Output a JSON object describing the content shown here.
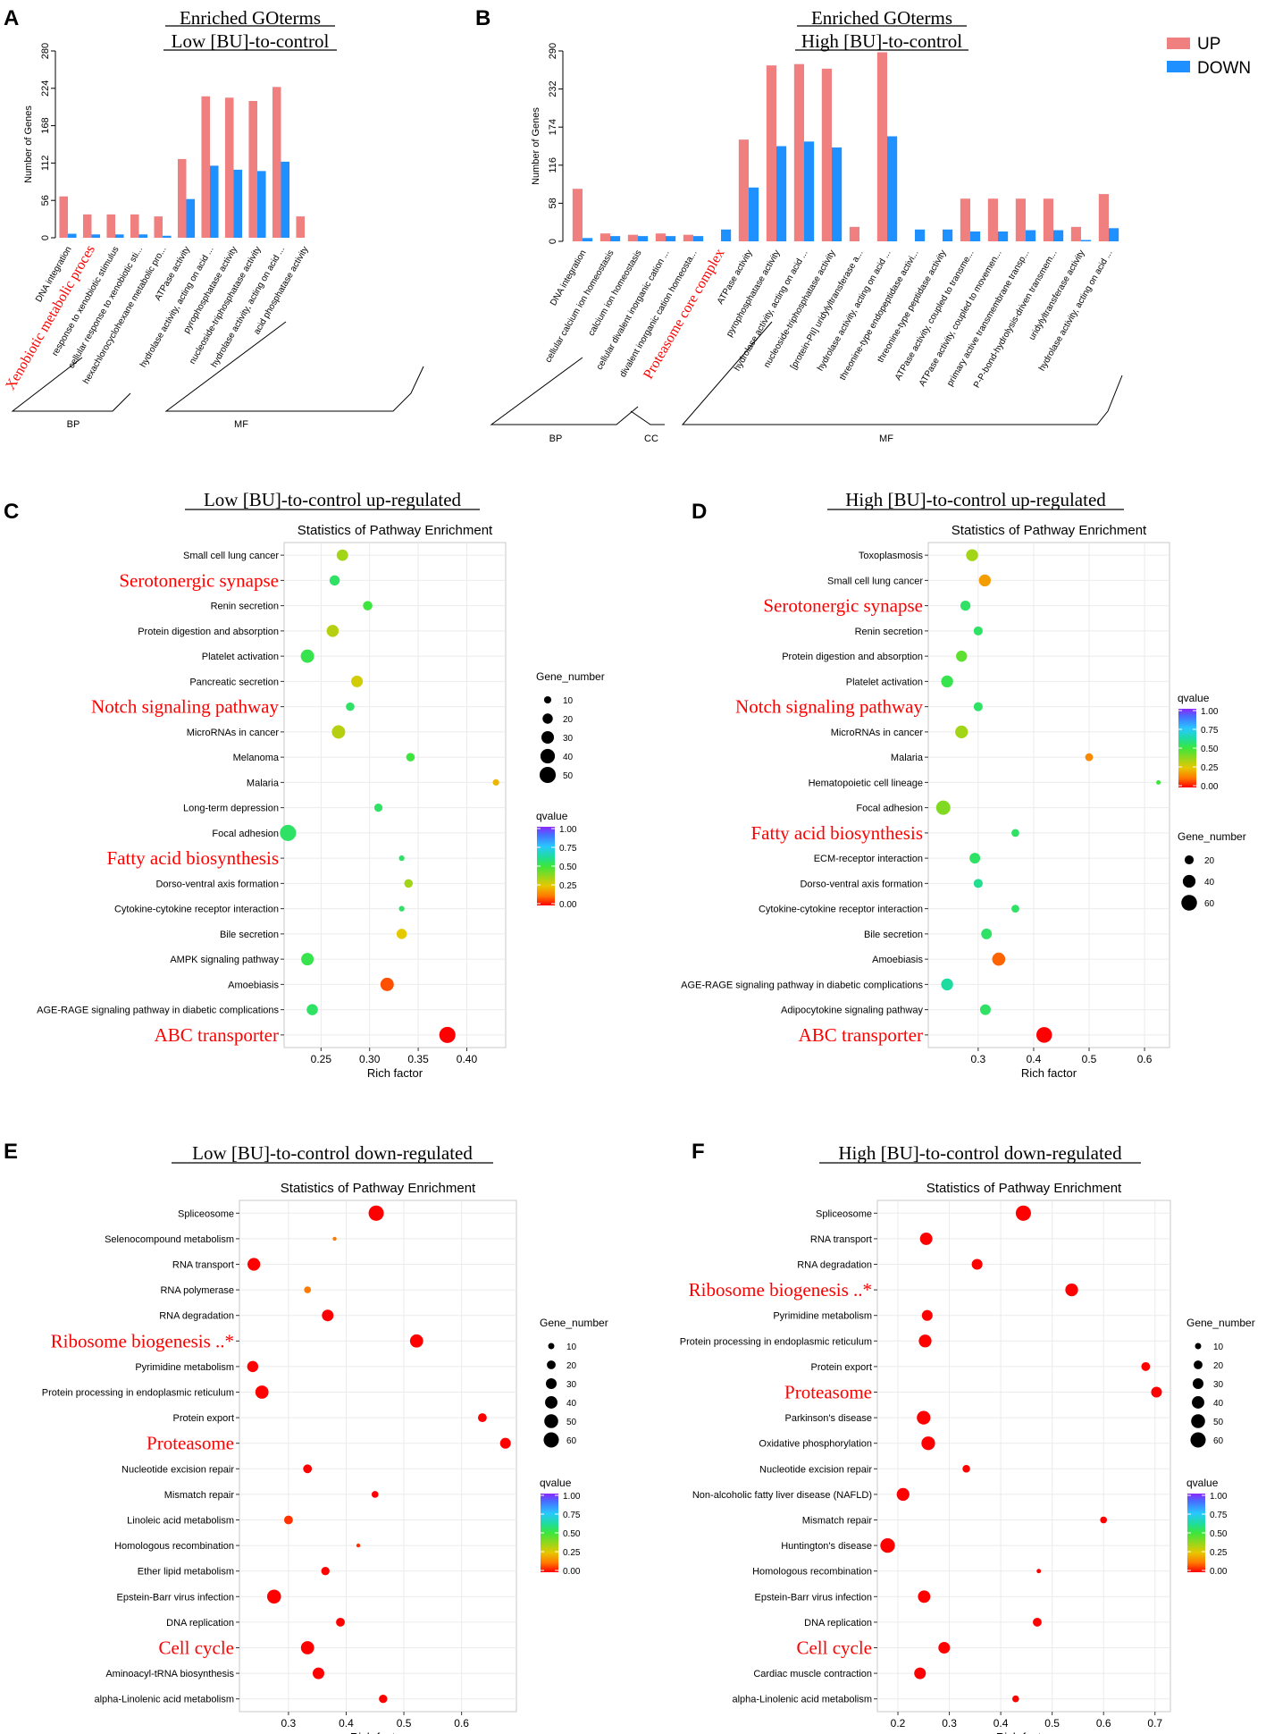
{
  "colors": {
    "up": "#F08080",
    "down": "#1E90FF",
    "highlight": "#FF0000",
    "grid": "#EBEBEB",
    "frame": "#C8C8C8"
  },
  "legend": {
    "up": "UP",
    "down": "DOWN"
  },
  "chart_data": [
    {
      "id": "A",
      "panel_letter": "A",
      "type": "bar",
      "title_line1": "Enriched GOterms",
      "title_line2": "Low [BU]-to-control",
      "ylabel": "Number of Genes",
      "ylim": [
        0,
        280
      ],
      "yticks": [
        0,
        56,
        112,
        168,
        224,
        280
      ],
      "categories": [
        "DNA integration",
        "Xenobiotic metabolic proces",
        "response to xenobiotic stimulus",
        "cellular response to xenobiotic sti...",
        "hexachlorocyclohexane metabolic pro...",
        "ATPase activity",
        "hydrolase activity, acting on acid ...",
        "pyrophosphatase activity",
        "nucleoside-triphosphatase activity",
        "hydrolase activity, acting on acid ...",
        "acid phosphatase activity"
      ],
      "highlight": [
        1
      ],
      "series": [
        {
          "name": "UP",
          "values": [
            62,
            35,
            35,
            35,
            32,
            118,
            212,
            210,
            205,
            226,
            32
          ]
        },
        {
          "name": "DOWN",
          "values": [
            6,
            5,
            5,
            5,
            3,
            58,
            108,
            102,
            100,
            114,
            0
          ]
        }
      ],
      "groups": [
        {
          "label": "BP",
          "from": 0,
          "to": 4
        },
        {
          "label": "MF",
          "from": 5,
          "to": 10
        }
      ]
    },
    {
      "id": "B",
      "panel_letter": "B",
      "type": "bar",
      "title_line1": "Enriched GOterms",
      "title_line2": "High [BU]-to-control",
      "ylabel": "Number of Genes",
      "ylim": [
        0,
        290
      ],
      "yticks": [
        0,
        58,
        116,
        174,
        232,
        290
      ],
      "categories": [
        "DNA integration",
        "cellular calcium ion homeostasis",
        "calcium ion homeostasis",
        "cellular divalent inorganic cation ...",
        "divalent inorganic cation homeosta...",
        "Proteasome core complex",
        "ATPase activity",
        "pyrophosphatase activity",
        "hydrolase activity, acting on acid ...",
        "nucleoside-triphosphatase activity",
        "[protein-PII] uridylyltransferase a...",
        "hydrolase activity, acting on acid ...",
        "threonine-type endopeptidase activi...",
        "threonine-type peptidase activity",
        "ATPase activity, coupled to transme...",
        "ATPase activity, coupled to movemen...",
        "primary active transmembrane transp...",
        "P-P-bond-hydrolysis-driven transmem...",
        "uridylyltransferase activity",
        "hydrolase activity, acting on acid ..."
      ],
      "highlight": [
        5
      ],
      "series": [
        {
          "name": "UP",
          "values": [
            80,
            12,
            10,
            12,
            10,
            0,
            155,
            268,
            270,
            263,
            22,
            288,
            0,
            0,
            65,
            65,
            65,
            65,
            22,
            72
          ]
        },
        {
          "name": "DOWN",
          "values": [
            5,
            8,
            8,
            8,
            8,
            18,
            82,
            145,
            152,
            143,
            0,
            160,
            18,
            18,
            15,
            15,
            17,
            17,
            2,
            20
          ]
        }
      ],
      "groups": [
        {
          "label": "BP",
          "from": 0,
          "to": 4
        },
        {
          "label": "CC",
          "from": 5,
          "to": 5
        },
        {
          "label": "MF",
          "from": 6,
          "to": 19
        }
      ]
    },
    {
      "id": "C",
      "panel_letter": "C",
      "type": "scatter",
      "heading": "Low [BU]-to-control up-regulated",
      "title": "Statistics of Pathway Enrichment",
      "xlabel": "Rich factor",
      "xlim": [
        0.212,
        0.44
      ],
      "xticks": [
        0.25,
        0.3,
        0.35,
        0.4
      ],
      "xtick_labels": [
        "0.25",
        "0.30",
        "0.35",
        "0.40"
      ],
      "size_legend_title": "Gene_number",
      "size_legend": [
        10,
        20,
        30,
        40,
        50
      ],
      "color_legend_title": "qvalue",
      "color_ticks": [
        "1.00",
        "0.75",
        "0.50",
        "0.25",
        "0.00"
      ],
      "points": [
        {
          "label": "Small cell lung cancer",
          "x": 0.272,
          "n": 25,
          "q": 0.35,
          "hl": false
        },
        {
          "label": "Serotonergic synapse",
          "x": 0.264,
          "n": 20,
          "q": 0.55,
          "hl": true
        },
        {
          "label": "Renin secretion",
          "x": 0.298,
          "n": 17,
          "q": 0.5,
          "hl": false
        },
        {
          "label": "Protein digestion and absorption",
          "x": 0.262,
          "n": 28,
          "q": 0.32,
          "hl": false
        },
        {
          "label": "Platelet activation",
          "x": 0.236,
          "n": 34,
          "q": 0.52,
          "hl": false
        },
        {
          "label": "Pancreatic secretion",
          "x": 0.287,
          "n": 26,
          "q": 0.28,
          "hl": false
        },
        {
          "label": "Notch signaling pathway",
          "x": 0.28,
          "n": 14,
          "q": 0.55,
          "hl": true
        },
        {
          "label": "MicroRNAs in cancer",
          "x": 0.268,
          "n": 34,
          "q": 0.32,
          "hl": false
        },
        {
          "label": "Melanoma",
          "x": 0.342,
          "n": 14,
          "q": 0.5,
          "hl": false
        },
        {
          "label": "Malaria",
          "x": 0.43,
          "n": 8,
          "q": 0.22,
          "hl": false
        },
        {
          "label": "Long-term depression",
          "x": 0.309,
          "n": 13,
          "q": 0.55,
          "hl": false
        },
        {
          "label": "Focal adhesion",
          "x": 0.216,
          "n": 50,
          "q": 0.55,
          "hl": false
        },
        {
          "label": "Fatty acid biosynthesis",
          "x": 0.333,
          "n": 6,
          "q": 0.55,
          "hl": true
        },
        {
          "label": "Dorso-ventral axis formation",
          "x": 0.34,
          "n": 14,
          "q": 0.35,
          "hl": false
        },
        {
          "label": "Cytokine-cytokine receptor interaction",
          "x": 0.333,
          "n": 6,
          "q": 0.55,
          "hl": false
        },
        {
          "label": "Bile secretion",
          "x": 0.333,
          "n": 20,
          "q": 0.25,
          "hl": false
        },
        {
          "label": "AMPK signaling pathway",
          "x": 0.236,
          "n": 30,
          "q": 0.52,
          "hl": false
        },
        {
          "label": "Amoebiasis",
          "x": 0.318,
          "n": 34,
          "q": 0.08,
          "hl": false
        },
        {
          "label": "AGE-RAGE signaling pathway in diabetic complications",
          "x": 0.241,
          "n": 24,
          "q": 0.55,
          "hl": false
        },
        {
          "label": "ABC transporter",
          "x": 0.38,
          "n": 50,
          "q": 0.0,
          "hl": true
        }
      ]
    },
    {
      "id": "D",
      "panel_letter": "D",
      "type": "scatter",
      "heading": "High [BU]-to-control up-regulated",
      "title": "Statistics of Pathway Enrichment",
      "xlabel": "Rich factor",
      "xlim": [
        0.21,
        0.645
      ],
      "xticks": [
        0.3,
        0.4,
        0.5,
        0.6
      ],
      "xtick_labels": [
        "0.3",
        "0.4",
        "0.5",
        "0.6"
      ],
      "color_legend_title": "qvalue",
      "color_ticks": [
        "1.00",
        "0.75",
        "0.50",
        "0.25",
        "0.00"
      ],
      "size_legend_title": "Gene_number",
      "size_legend": [
        20,
        40,
        60
      ],
      "points": [
        {
          "label": "Toxoplasmosis",
          "x": 0.289,
          "n": 35,
          "q": 0.35,
          "hl": false
        },
        {
          "label": "Small cell lung cancer",
          "x": 0.312,
          "n": 35,
          "q": 0.18,
          "hl": false
        },
        {
          "label": "Serotonergic synapse",
          "x": 0.277,
          "n": 25,
          "q": 0.55,
          "hl": true
        },
        {
          "label": "Renin secretion",
          "x": 0.3,
          "n": 20,
          "q": 0.55,
          "hl": false
        },
        {
          "label": "Protein digestion and absorption",
          "x": 0.27,
          "n": 30,
          "q": 0.45,
          "hl": false
        },
        {
          "label": "Platelet activation",
          "x": 0.244,
          "n": 35,
          "q": 0.52,
          "hl": false
        },
        {
          "label": "Notch signaling pathway",
          "x": 0.3,
          "n": 20,
          "q": 0.55,
          "hl": true
        },
        {
          "label": "MicroRNAs in cancer",
          "x": 0.27,
          "n": 40,
          "q": 0.35,
          "hl": false
        },
        {
          "label": "Malaria",
          "x": 0.5,
          "n": 15,
          "q": 0.15,
          "hl": false
        },
        {
          "label": "Hematopoietic cell lineage",
          "x": 0.625,
          "n": 5,
          "q": 0.5,
          "hl": false
        },
        {
          "label": "Focal adhesion",
          "x": 0.237,
          "n": 50,
          "q": 0.4,
          "hl": false
        },
        {
          "label": "Fatty acid biosynthesis",
          "x": 0.367,
          "n": 15,
          "q": 0.55,
          "hl": true
        },
        {
          "label": "ECM-receptor interaction",
          "x": 0.294,
          "n": 28,
          "q": 0.55,
          "hl": false
        },
        {
          "label": "Dorso-ventral axis formation",
          "x": 0.3,
          "n": 20,
          "q": 0.6,
          "hl": false
        },
        {
          "label": "Cytokine-cytokine receptor interaction",
          "x": 0.367,
          "n": 15,
          "q": 0.55,
          "hl": false
        },
        {
          "label": "Bile secretion",
          "x": 0.315,
          "n": 28,
          "q": 0.55,
          "hl": false
        },
        {
          "label": "Amoebiasis",
          "x": 0.337,
          "n": 42,
          "q": 0.1,
          "hl": false
        },
        {
          "label": "AGE-RAGE signaling pathway in diabetic complications",
          "x": 0.244,
          "n": 35,
          "q": 0.62,
          "hl": false
        },
        {
          "label": "Adipocytokine signaling pathway",
          "x": 0.313,
          "n": 28,
          "q": 0.55,
          "hl": false
        },
        {
          "label": "ABC transporter",
          "x": 0.419,
          "n": 60,
          "q": 0.0,
          "hl": true
        }
      ]
    },
    {
      "id": "E",
      "panel_letter": "E",
      "type": "scatter",
      "heading": "Low [BU]-to-control down-regulated",
      "title": "Statistics of Pathway Enrichment",
      "xlabel": "Rich factor",
      "xlim": [
        0.215,
        0.695
      ],
      "xticks": [
        0.3,
        0.4,
        0.5,
        0.6
      ],
      "xtick_labels": [
        "0.3",
        "0.4",
        "0.5",
        "0.6"
      ],
      "size_legend_title": "Gene_number",
      "size_legend": [
        10,
        20,
        30,
        40,
        50,
        60
      ],
      "color_legend_title": "qvalue",
      "color_ticks": [
        "1.00",
        "0.75",
        "0.50",
        "0.25",
        "0.00"
      ],
      "points": [
        {
          "label": "Spliceosome",
          "x": 0.452,
          "n": 60,
          "q": 0.0,
          "hl": false
        },
        {
          "label": "Selenocompound metabolism",
          "x": 0.38,
          "n": 4,
          "q": 0.12,
          "hl": false
        },
        {
          "label": "RNA transport",
          "x": 0.24,
          "n": 42,
          "q": 0.0,
          "hl": false
        },
        {
          "label": "RNA polymerase",
          "x": 0.333,
          "n": 12,
          "q": 0.12,
          "hl": false
        },
        {
          "label": "RNA degradation",
          "x": 0.368,
          "n": 35,
          "q": 0.0,
          "hl": false
        },
        {
          "label": "Ribosome biogenesis ..*",
          "x": 0.522,
          "n": 45,
          "q": 0.0,
          "hl": true
        },
        {
          "label": "Pyrimidine metabolism",
          "x": 0.238,
          "n": 32,
          "q": 0.0,
          "hl": false
        },
        {
          "label": "Protein processing in endoplasmic reticulum",
          "x": 0.254,
          "n": 45,
          "q": 0.0,
          "hl": false
        },
        {
          "label": "Protein export",
          "x": 0.636,
          "n": 20,
          "q": 0.0,
          "hl": false
        },
        {
          "label": "Proteasome",
          "x": 0.676,
          "n": 30,
          "q": 0.0,
          "hl": true
        },
        {
          "label": "Nucleotide excision repair",
          "x": 0.333,
          "n": 20,
          "q": 0.0,
          "hl": false
        },
        {
          "label": "Mismatch repair",
          "x": 0.45,
          "n": 12,
          "q": 0.0,
          "hl": false
        },
        {
          "label": "Linoleic acid metabolism",
          "x": 0.3,
          "n": 20,
          "q": 0.05,
          "hl": false
        },
        {
          "label": "Homologous recombination",
          "x": 0.421,
          "n": 4,
          "q": 0.05,
          "hl": false
        },
        {
          "label": "Ether lipid metabolism",
          "x": 0.364,
          "n": 18,
          "q": 0.0,
          "hl": false
        },
        {
          "label": "Epstein-Barr virus infection",
          "x": 0.275,
          "n": 50,
          "q": 0.0,
          "hl": false
        },
        {
          "label": "DNA replication",
          "x": 0.39,
          "n": 20,
          "q": 0.0,
          "hl": false
        },
        {
          "label": "Cell cycle",
          "x": 0.333,
          "n": 45,
          "q": 0.0,
          "hl": true
        },
        {
          "label": "Aminoacyl-tRNA biosynthesis",
          "x": 0.352,
          "n": 35,
          "q": 0.0,
          "hl": false
        },
        {
          "label": "alpha-Linolenic acid metabolism",
          "x": 0.464,
          "n": 18,
          "q": 0.0,
          "hl": false
        }
      ]
    },
    {
      "id": "F",
      "panel_letter": "F",
      "type": "scatter",
      "heading": "High [BU]-to-control down-regulated",
      "title": "Statistics of Pathway Enrichment",
      "xlabel": "Rich factor",
      "xlim": [
        0.16,
        0.73
      ],
      "xticks": [
        0.2,
        0.3,
        0.4,
        0.5,
        0.6,
        0.7
      ],
      "xtick_labels": [
        "0.2",
        "0.3",
        "0.4",
        "0.5",
        "0.6",
        "0.7"
      ],
      "size_legend_title": "Gene_number",
      "size_legend": [
        10,
        20,
        30,
        40,
        50,
        60
      ],
      "color_legend_title": "qvalue",
      "color_ticks": [
        "1.00",
        "0.75",
        "0.50",
        "0.25",
        "0.00"
      ],
      "points": [
        {
          "label": "Spliceosome",
          "x": 0.444,
          "n": 60,
          "q": 0.0,
          "hl": false
        },
        {
          "label": "RNA transport",
          "x": 0.255,
          "n": 40,
          "q": 0.0,
          "hl": false
        },
        {
          "label": "RNA degradation",
          "x": 0.354,
          "n": 30,
          "q": 0.0,
          "hl": false
        },
        {
          "label": "Ribosome biogenesis ..*",
          "x": 0.538,
          "n": 42,
          "q": 0.0,
          "hl": true
        },
        {
          "label": "Pyrimidine metabolism",
          "x": 0.257,
          "n": 30,
          "q": 0.0,
          "hl": false
        },
        {
          "label": "Protein processing in endoplasmic reticulum",
          "x": 0.253,
          "n": 42,
          "q": 0.0,
          "hl": false
        },
        {
          "label": "Protein export",
          "x": 0.682,
          "n": 20,
          "q": 0.0,
          "hl": false
        },
        {
          "label": "Proteasome",
          "x": 0.703,
          "n": 30,
          "q": 0.0,
          "hl": true
        },
        {
          "label": "Parkinson's disease",
          "x": 0.25,
          "n": 48,
          "q": 0.0,
          "hl": false
        },
        {
          "label": "Oxidative phosphorylation",
          "x": 0.259,
          "n": 48,
          "q": 0.0,
          "hl": false
        },
        {
          "label": "Nucleotide excision repair",
          "x": 0.333,
          "n": 15,
          "q": 0.0,
          "hl": false
        },
        {
          "label": "Non-alcoholic fatty liver disease (NAFLD)",
          "x": 0.21,
          "n": 42,
          "q": 0.0,
          "hl": false
        },
        {
          "label": "Mismatch repair",
          "x": 0.6,
          "n": 12,
          "q": 0.0,
          "hl": false
        },
        {
          "label": "Huntington's disease",
          "x": 0.18,
          "n": 55,
          "q": 0.0,
          "hl": false
        },
        {
          "label": "Homologous recombination",
          "x": 0.474,
          "n": 5,
          "q": 0.0,
          "hl": false
        },
        {
          "label": "Epstein-Barr virus infection",
          "x": 0.251,
          "n": 40,
          "q": 0.0,
          "hl": false
        },
        {
          "label": "DNA replication",
          "x": 0.471,
          "n": 20,
          "q": 0.0,
          "hl": false
        },
        {
          "label": "Cell cycle",
          "x": 0.29,
          "n": 35,
          "q": 0.0,
          "hl": true
        },
        {
          "label": "Cardiac muscle contraction",
          "x": 0.243,
          "n": 35,
          "q": 0.0,
          "hl": false
        },
        {
          "label": "alpha-Linolenic acid metabolism",
          "x": 0.429,
          "n": 12,
          "q": 0.0,
          "hl": false
        }
      ]
    }
  ]
}
